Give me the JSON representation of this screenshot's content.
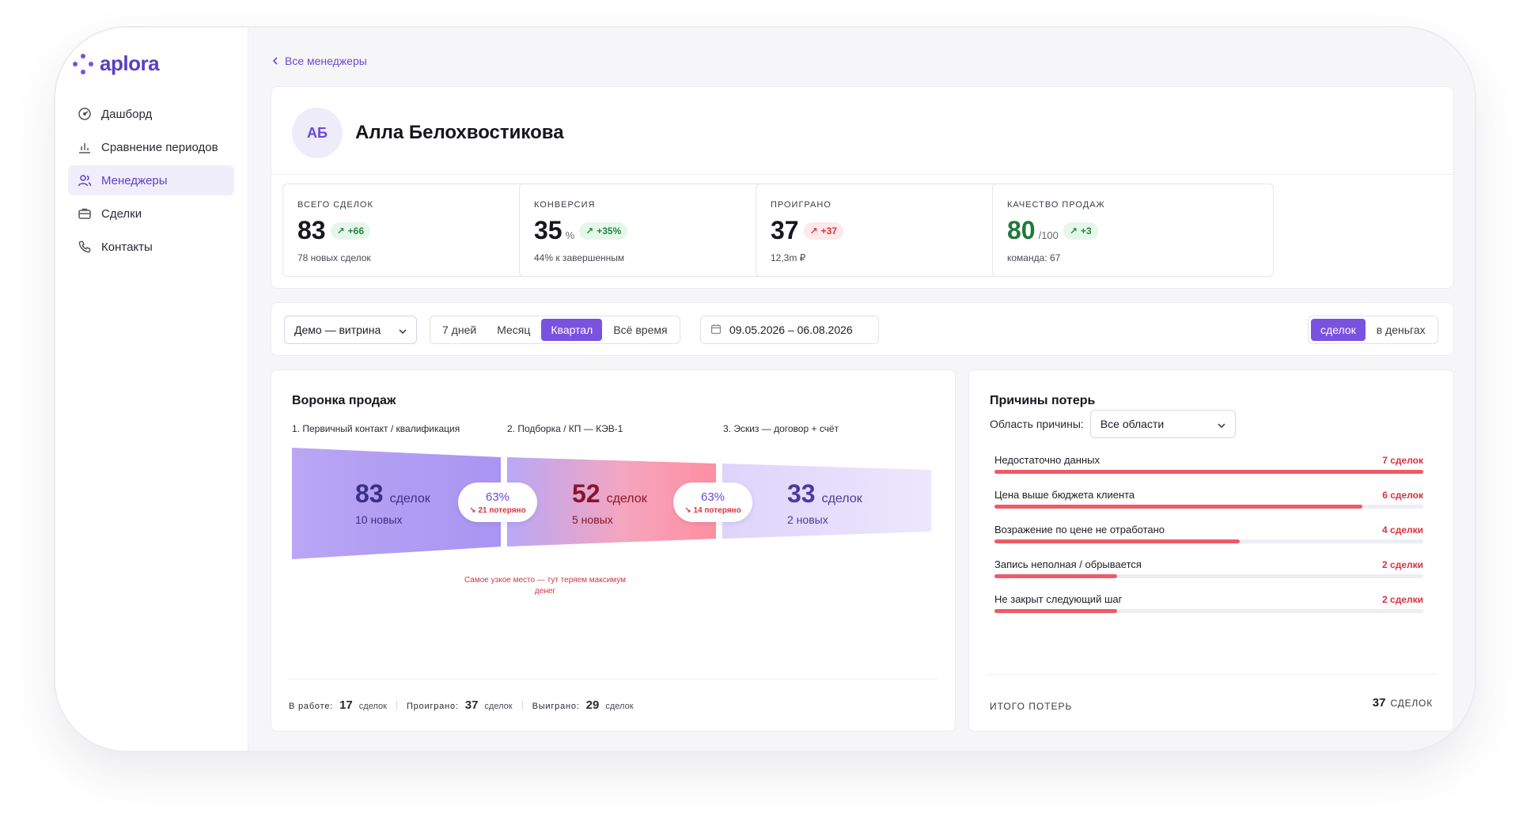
{
  "app": {
    "logo_text": "aplora"
  },
  "sidebar": {
    "items": [
      {
        "label": "Дашборд",
        "icon": "dashboard-icon"
      },
      {
        "label": "Сравнение периодов",
        "icon": "bar-chart-icon"
      },
      {
        "label": "Менеджеры",
        "icon": "users-icon",
        "active": true
      },
      {
        "label": "Сделки",
        "icon": "briefcase-icon"
      },
      {
        "label": "Контакты",
        "icon": "phone-icon"
      }
    ]
  },
  "breadcrumb": {
    "back_label": "Все менеджеры"
  },
  "profile": {
    "initials": "АБ",
    "name": "Алла Белохвостикова"
  },
  "kpis": [
    {
      "label": "Всего сделок",
      "value": "83",
      "unit": "",
      "delta": "+66",
      "delta_tone": "green",
      "sub": "78 новых сделок"
    },
    {
      "label": "Конверсия",
      "value": "35",
      "unit": "%",
      "delta": "+35%",
      "delta_tone": "green",
      "sub": "44% к завершенным"
    },
    {
      "label": "Проиграно",
      "value": "37",
      "unit": "",
      "delta": "+37",
      "delta_tone": "red",
      "sub": "12,3m ₽"
    },
    {
      "label": "Качество продаж",
      "value": "80",
      "unit": "/100",
      "delta": "+3",
      "delta_tone": "green",
      "sub": "команда: 67"
    }
  ],
  "filters": {
    "scope_select": "Демо — витрина",
    "periods": [
      "7 дней",
      "Месяц",
      "Квартал",
      "Всё время"
    ],
    "active_period": "Квартал",
    "date_range": "09.05.2026 – 06.08.2026",
    "units": [
      "сделок",
      "в деньгах"
    ],
    "active_unit": "сделок"
  },
  "funnel": {
    "title": "Воронка продаж",
    "stages": [
      {
        "label": "1. Первичный контакт / квалификация",
        "count": "83",
        "unit": "сделок",
        "new": "10 новых"
      },
      {
        "label": "2. Подборка / КП — КЭВ-1",
        "count": "52",
        "unit": "сделок",
        "new": "5 новых"
      },
      {
        "label": "3. Эскиз — договор + счёт",
        "count": "33",
        "unit": "сделок",
        "new": "2 новых"
      }
    ],
    "conversions": [
      {
        "pct": "63%",
        "lost": "↘ 21 потеряно"
      },
      {
        "pct": "63%",
        "lost": "↘ 14 потеряно"
      }
    ],
    "bottleneck_note": "Самое узкое место — тут теряем максимум денег",
    "footer": {
      "in_work_label": "В работе:",
      "in_work": "17",
      "in_work_unit": "сделок",
      "lost_label": "Проиграно:",
      "lost": "37",
      "lost_unit": "сделок",
      "won_label": "Выиграно:",
      "won": "29",
      "won_unit": "сделок"
    }
  },
  "reasons": {
    "title": "Причины потерь",
    "area_label": "Область причины:",
    "area_select": "Все области",
    "items": [
      {
        "label": "Недостаточно данных",
        "count_text": "7 сделок",
        "count": 7
      },
      {
        "label": "Цена выше бюджета клиента",
        "count_text": "6 сделок",
        "count": 6
      },
      {
        "label": "Возражение по цене не отработано",
        "count_text": "4 сделки",
        "count": 4
      },
      {
        "label": "Запись неполная / обрывается",
        "count_text": "2 сделки",
        "count": 2
      },
      {
        "label": "Не закрыт следующий шаг",
        "count_text": "2 сделки",
        "count": 2
      }
    ],
    "max_count": 7,
    "total_label": "Итого потерь",
    "total": "37",
    "total_unit": "СДЕЛОК"
  },
  "colors": {
    "accent": "#7a52e0",
    "positive": "#1f8a3c",
    "negative": "#d63343",
    "loss_bar": "#ef5a68"
  }
}
